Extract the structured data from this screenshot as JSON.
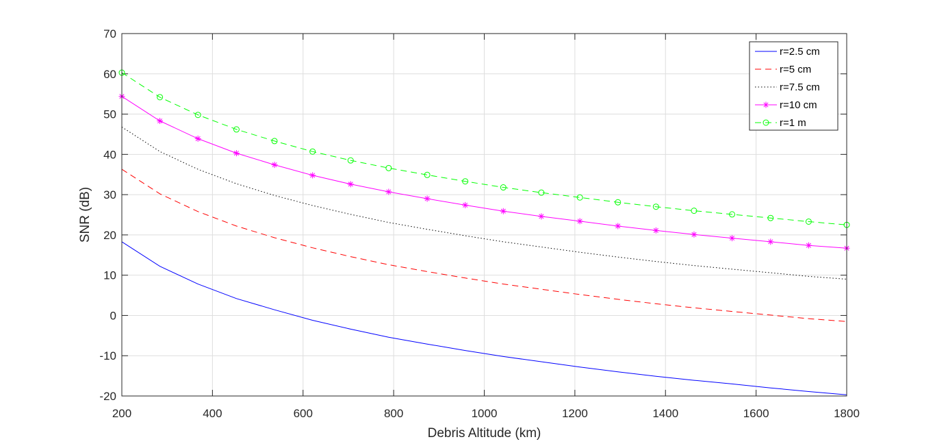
{
  "chart_data": {
    "type": "line",
    "title": "",
    "xlabel": "Debris Altitude (km)",
    "ylabel": "SNR (dB)",
    "xlim": [
      200,
      1800
    ],
    "ylim": [
      -20,
      70
    ],
    "xticks": [
      200,
      400,
      600,
      800,
      1000,
      1200,
      1400,
      1600,
      1800
    ],
    "yticks": [
      -20,
      -10,
      0,
      10,
      20,
      30,
      40,
      50,
      60,
      70
    ],
    "grid": true,
    "legend_position": "top-right",
    "x": [
      200,
      284,
      368,
      453,
      537,
      621,
      705,
      789,
      874,
      958,
      1042,
      1126,
      1211,
      1295,
      1379,
      1463,
      1547,
      1632,
      1716,
      1800
    ],
    "series": [
      {
        "name": "r=2.5 cm",
        "color": "#0000ff",
        "line": "solid",
        "marker": "none",
        "values": [
          18.3,
          12.2,
          7.8,
          4.2,
          1.4,
          -1.2,
          -3.4,
          -5.4,
          -7.1,
          -8.7,
          -10.2,
          -11.5,
          -12.8,
          -14.0,
          -15.1,
          -16.1,
          -17.0,
          -18.0,
          -18.9,
          -19.7
        ]
      },
      {
        "name": "r=5 cm",
        "color": "#ff0000",
        "line": "dashed",
        "marker": "none",
        "values": [
          36.3,
          30.2,
          25.8,
          22.2,
          19.3,
          16.8,
          14.6,
          12.6,
          10.9,
          9.3,
          7.8,
          6.5,
          5.2,
          4.0,
          2.9,
          1.9,
          1.0,
          0.1,
          -0.8,
          -1.5
        ]
      },
      {
        "name": "r=7.5 cm",
        "color": "#000000",
        "line": "dotted",
        "marker": "none",
        "values": [
          46.8,
          40.7,
          36.3,
          32.7,
          29.8,
          27.3,
          25.1,
          23.1,
          21.4,
          19.8,
          18.3,
          17.0,
          15.7,
          14.5,
          13.4,
          12.4,
          11.5,
          10.6,
          9.7,
          9.0
        ]
      },
      {
        "name": "r=10 cm",
        "color": "#ff00ff",
        "line": "solid",
        "marker": "star",
        "values": [
          54.4,
          48.3,
          43.9,
          40.3,
          37.4,
          34.8,
          32.6,
          30.7,
          29.0,
          27.4,
          25.9,
          24.6,
          23.4,
          22.2,
          21.1,
          20.1,
          19.2,
          18.3,
          17.4,
          16.7
        ]
      },
      {
        "name": "r=1 m",
        "color": "#00ff00",
        "line": "dashed",
        "marker": "circle",
        "values": [
          60.3,
          54.2,
          49.8,
          46.2,
          43.3,
          40.7,
          38.5,
          36.6,
          34.9,
          33.3,
          31.8,
          30.5,
          29.3,
          28.1,
          27.0,
          26.0,
          25.1,
          24.2,
          23.3,
          22.5
        ]
      }
    ]
  }
}
